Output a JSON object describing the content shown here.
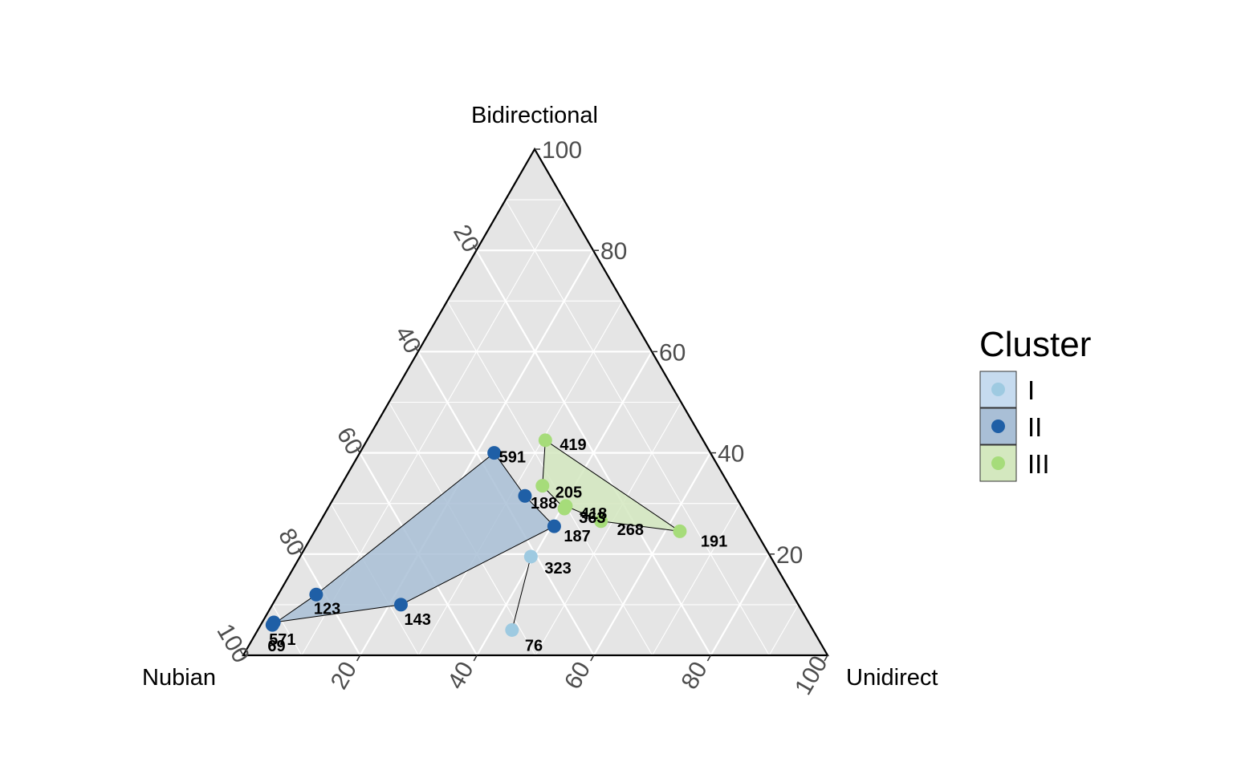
{
  "chart_data": {
    "type": "scatter",
    "subtype": "ternary",
    "axes": {
      "top": "Bidirectional",
      "left": "Nubian",
      "right": "Unidirect"
    },
    "ticks": [
      "20",
      "40",
      "60",
      "80",
      "100"
    ],
    "grid": true,
    "legend": {
      "title": "Cluster",
      "position": "right",
      "entries": [
        {
          "name": "I",
          "color": "#9ecae1",
          "fill": "#c6dbef"
        },
        {
          "name": "II",
          "color": "#1f5fa6",
          "fill": "#a9bfd6"
        },
        {
          "name": "III",
          "color": "#a6dc7a",
          "fill": "#d4e8bf"
        }
      ]
    },
    "points": [
      {
        "label": "591",
        "cluster": "II",
        "nubian": 37,
        "bidirectional": 40,
        "unidirectional": 23
      },
      {
        "label": "188",
        "cluster": "II",
        "nubian": 36,
        "bidirectional": 31.5,
        "unidirectional": 32.5
      },
      {
        "label": "187",
        "cluster": "II",
        "nubian": 34,
        "bidirectional": 25.5,
        "unidirectional": 40.5
      },
      {
        "label": "123",
        "cluster": "II",
        "nubian": 81.5,
        "bidirectional": 12,
        "unidirectional": 6.5
      },
      {
        "label": "143",
        "cluster": "II",
        "nubian": 68,
        "bidirectional": 10,
        "unidirectional": 22
      },
      {
        "label": "571",
        "cluster": "II",
        "nubian": 91.5,
        "bidirectional": 6.5,
        "unidirectional": 2
      },
      {
        "label": "69",
        "cluster": "II",
        "nubian": 92,
        "bidirectional": 6,
        "unidirectional": 2
      },
      {
        "label": "419",
        "cluster": "III",
        "nubian": 27,
        "bidirectional": 42.5,
        "unidirectional": 30.5
      },
      {
        "label": "205",
        "cluster": "III",
        "nubian": 32,
        "bidirectional": 33.5,
        "unidirectional": 34.5
      },
      {
        "label": "418",
        "cluster": "III",
        "nubian": 30,
        "bidirectional": 29.5,
        "unidirectional": 40.5
      },
      {
        "label": "363",
        "cluster": "III",
        "nubian": 30.5,
        "bidirectional": 29,
        "unidirectional": 40.5
      },
      {
        "label": "268",
        "cluster": "III",
        "nubian": 25.5,
        "bidirectional": 26.5,
        "unidirectional": 48
      },
      {
        "label": "191",
        "cluster": "III",
        "nubian": 13,
        "bidirectional": 24.5,
        "unidirectional": 62.5
      },
      {
        "label": "323",
        "cluster": "I",
        "nubian": 41,
        "bidirectional": 19.5,
        "unidirectional": 39.5
      },
      {
        "label": "76",
        "cluster": "I",
        "nubian": 51.5,
        "bidirectional": 5,
        "unidirectional": 43.5
      }
    ]
  }
}
